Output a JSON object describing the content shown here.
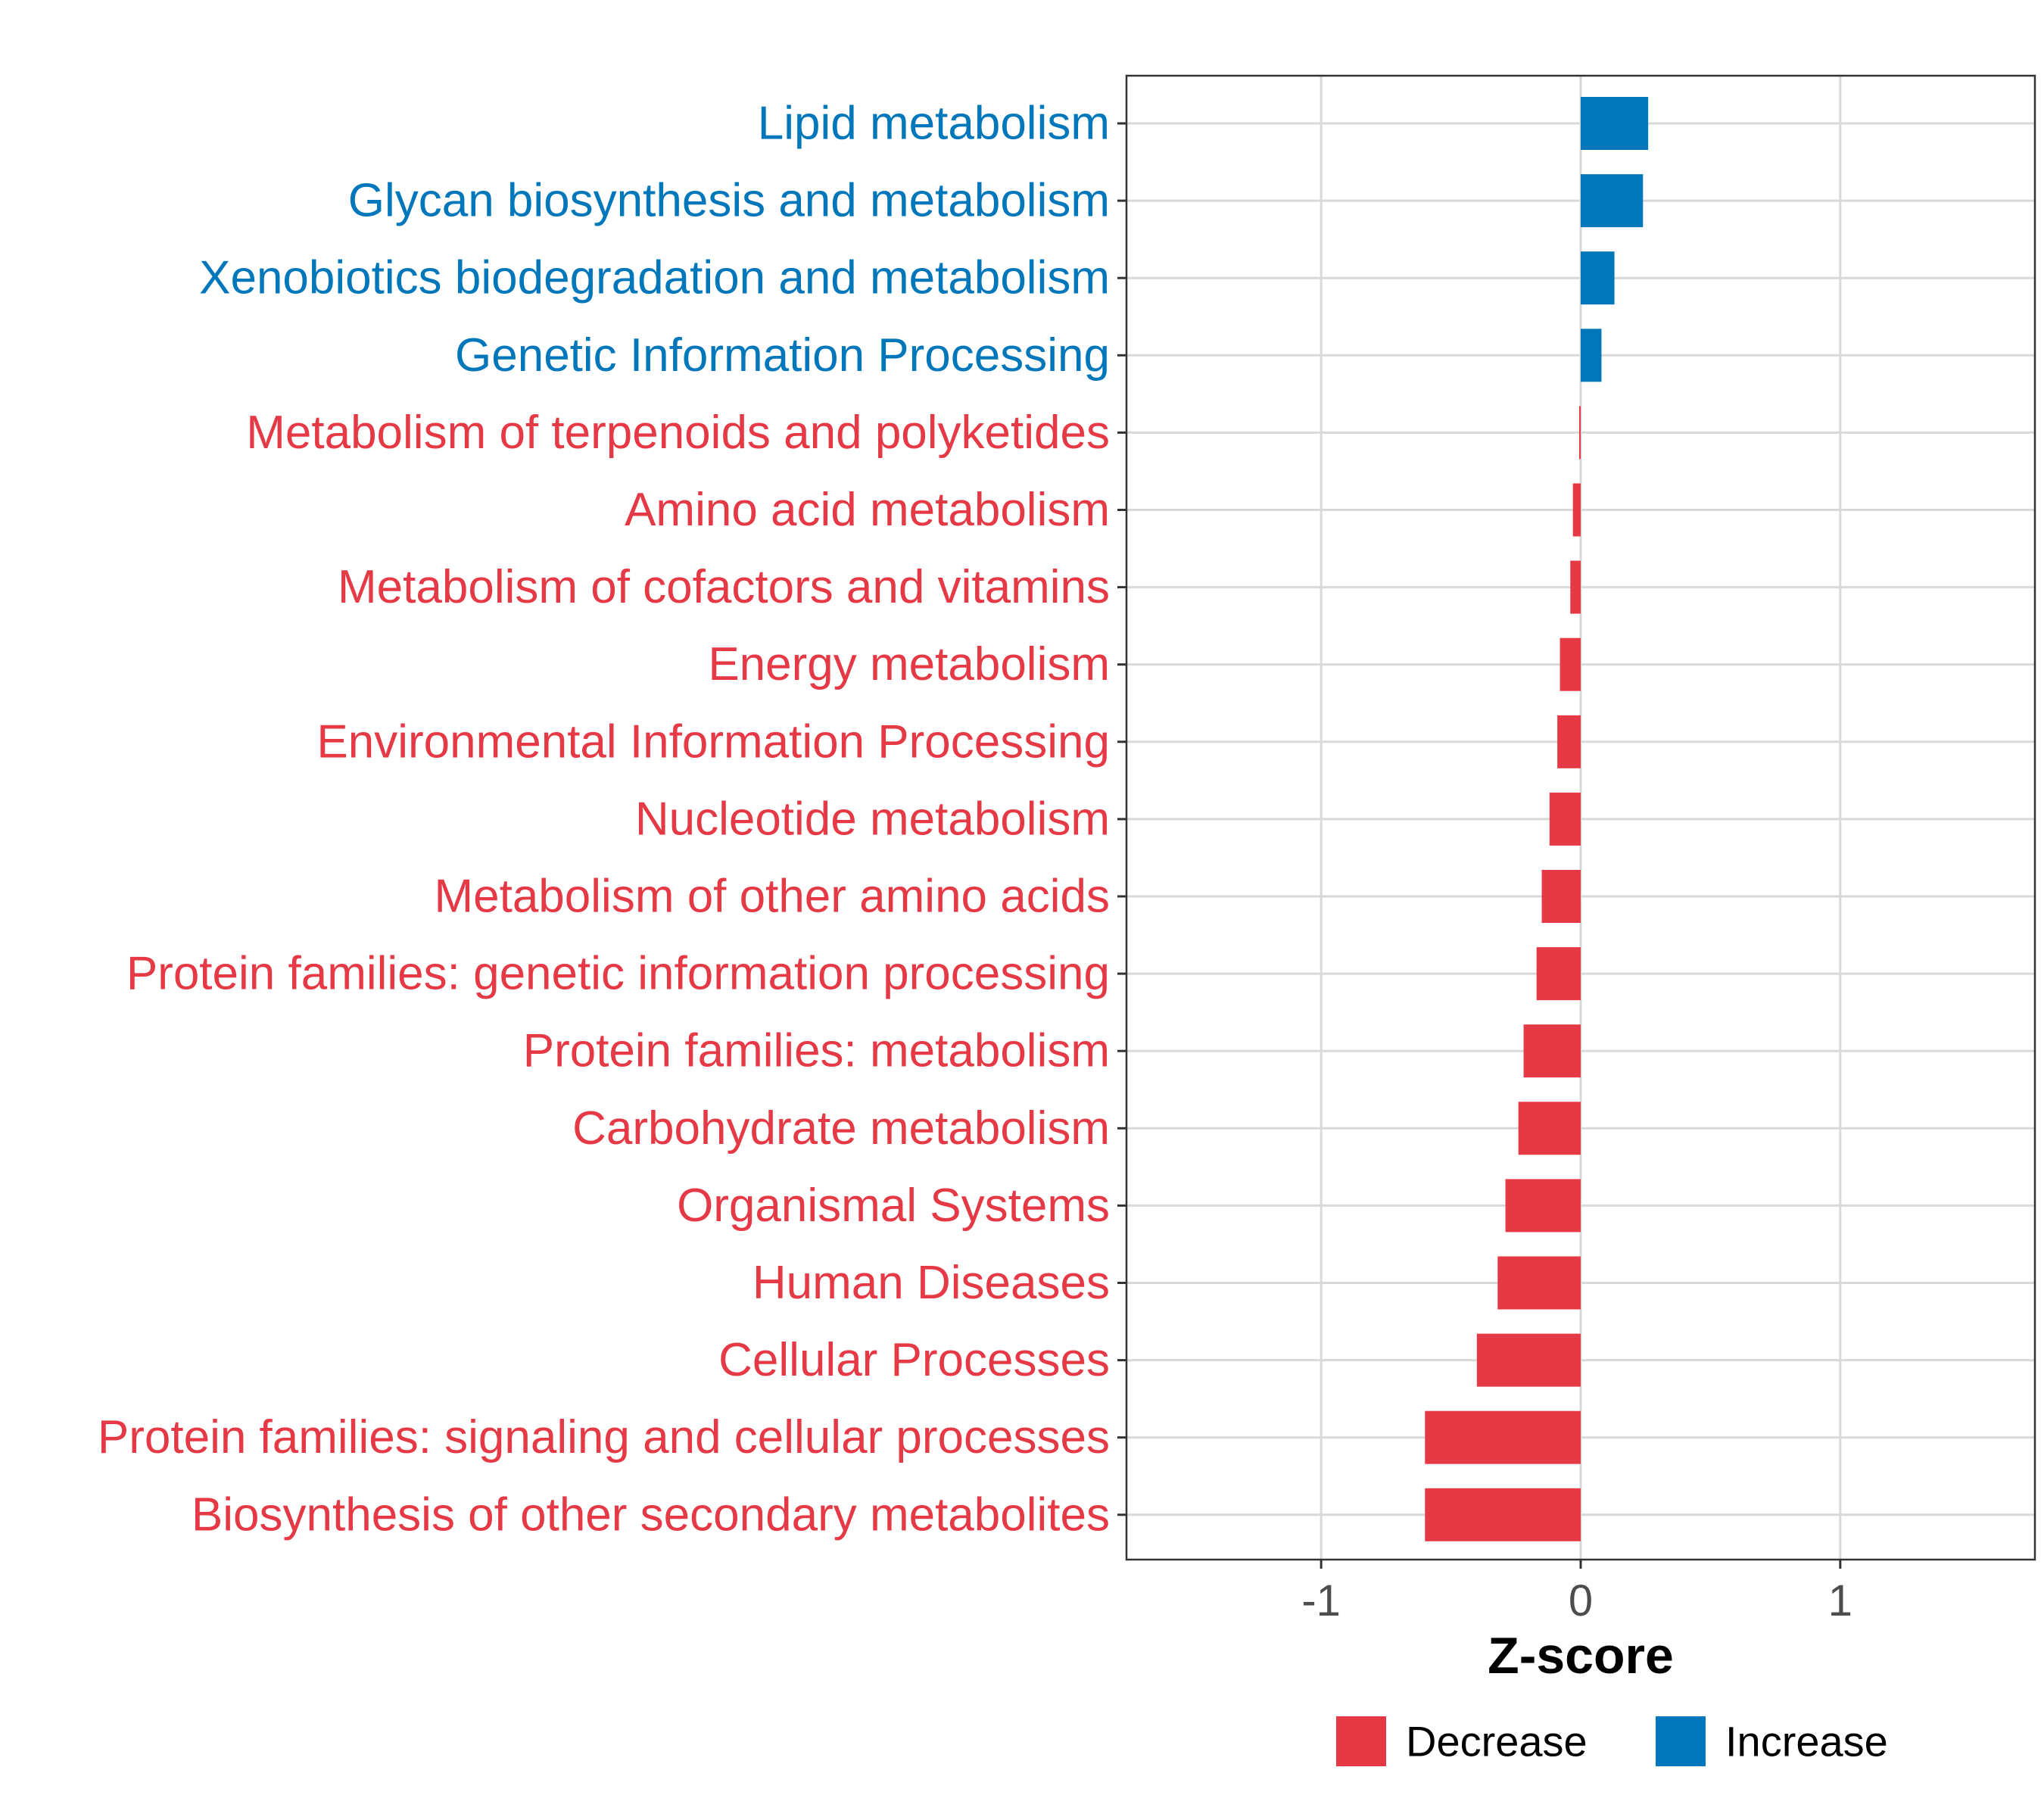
{
  "chart_data": {
    "type": "bar",
    "orientation": "horizontal",
    "title": "",
    "xlabel": "Z-score",
    "ylabel": "",
    "xlim": [
      -1.75,
      1.75
    ],
    "xticks": [
      -1,
      0,
      1
    ],
    "xtick_labels": [
      "-1",
      "0",
      "1"
    ],
    "grid": true,
    "categories": [
      "Lipid metabolism",
      "Glycan biosynthesis and metabolism",
      "Xenobiotics biodegradation and metabolism",
      "Genetic Information Processing",
      "Metabolism of terpenoids and polyketides",
      "Amino acid metabolism",
      "Metabolism of cofactors and vitamins",
      "Energy metabolism",
      "Environmental Information Processing",
      "Nucleotide metabolism",
      "Metabolism of other amino acids",
      "Protein families: genetic information processing",
      "Protein families: metabolism",
      "Carbohydrate metabolism",
      "Organismal Systems",
      "Human Diseases",
      "Cellular Processes",
      "Protein families: signaling and cellular processes",
      "Biosynthesis of other secondary metabolites"
    ],
    "values": [
      0.26,
      0.24,
      0.13,
      0.08,
      -0.005,
      -0.03,
      -0.04,
      -0.08,
      -0.09,
      -0.12,
      -0.15,
      -0.17,
      -0.22,
      -0.24,
      -0.29,
      -0.32,
      -0.4,
      -0.6,
      -0.6
    ],
    "groups": [
      "Increase",
      "Increase",
      "Increase",
      "Increase",
      "Decrease",
      "Decrease",
      "Decrease",
      "Decrease",
      "Decrease",
      "Decrease",
      "Decrease",
      "Decrease",
      "Decrease",
      "Decrease",
      "Decrease",
      "Decrease",
      "Decrease",
      "Decrease",
      "Decrease"
    ],
    "legend": {
      "position": "bottom",
      "entries": [
        {
          "name": "Decrease",
          "color": "#E63946"
        },
        {
          "name": "Increase",
          "color": "#0077BB"
        }
      ]
    },
    "colors": {
      "Decrease": "#E63946",
      "Increase": "#0077BB",
      "grid": "#D9D9D9",
      "panel_border": "#333333"
    }
  }
}
